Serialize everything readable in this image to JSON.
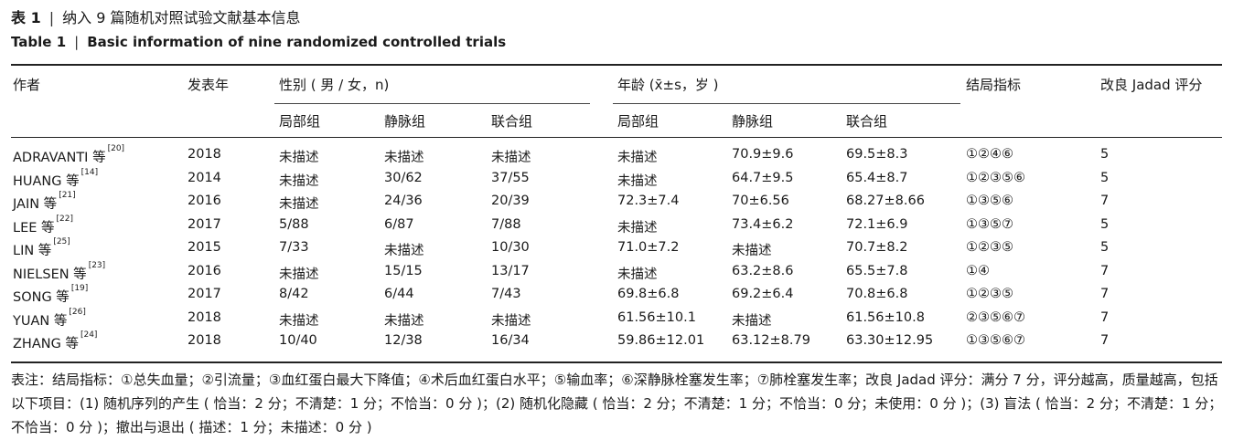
{
  "caption_cn": {
    "label": "表 1",
    "sep": "|",
    "text": "纳入 9 篇随机对照试验文献基本信息"
  },
  "caption_en": {
    "label": "Table 1",
    "sep": "|",
    "text": "Basic information of nine randomized controlled trials"
  },
  "headers": {
    "author": "作者",
    "year": "发表年",
    "sex": "性别 ( 男 / 女，n)",
    "age": "年龄 (x̄±s，岁 )",
    "outcome": "结局指标",
    "jadad": "改良 Jadad 评分",
    "sub": [
      "局部组",
      "静脉组",
      "联合组",
      "局部组",
      "静脉组",
      "联合组"
    ]
  },
  "rows": [
    {
      "author": "ADRAVANTI 等",
      "ref": "[20]",
      "year": "2018",
      "s1": "未描述",
      "s2": "未描述",
      "s3": "未描述",
      "a1": "未描述",
      "a2": "70.9±9.6",
      "a3": "69.5±8.3",
      "outcome": "①②④⑥",
      "jadad": "5"
    },
    {
      "author": "HUANG 等",
      "ref": "[14]",
      "year": "2014",
      "s1": "未描述",
      "s2": "30/62",
      "s3": "37/55",
      "a1": "未描述",
      "a2": "64.7±9.5",
      "a3": "65.4±8.7",
      "outcome": "①②③⑤⑥",
      "jadad": "5"
    },
    {
      "author": "JAIN 等",
      "ref": "[21]",
      "year": "2016",
      "s1": "未描述",
      "s2": "24/36",
      "s3": "20/39",
      "a1": "72.3±7.4",
      "a2": "70±6.56",
      "a3": "68.27±8.66",
      "outcome": "①③⑤⑥",
      "jadad": "7"
    },
    {
      "author": "LEE 等",
      "ref": "[22]",
      "year": "2017",
      "s1": "5/88",
      "s2": "6/87",
      "s3": "7/88",
      "a1": "未描述",
      "a2": "73.4±6.2",
      "a3": "72.1±6.9",
      "outcome": "①③⑤⑦",
      "jadad": "5"
    },
    {
      "author": "LIN 等",
      "ref": "[25]",
      "year": "2015",
      "s1": "7/33",
      "s2": "未描述",
      "s3": "10/30",
      "a1": "71.0±7.2",
      "a2": "未描述",
      "a3": "70.7±8.2",
      "outcome": "①②③⑤",
      "jadad": "5"
    },
    {
      "author": "NIELSEN 等",
      "ref": "[23]",
      "year": "2016",
      "s1": "未描述",
      "s2": "15/15",
      "s3": "13/17",
      "a1": "未描述",
      "a2": "63.2±8.6",
      "a3": "65.5±7.8",
      "outcome": "①④",
      "jadad": "7"
    },
    {
      "author": "SONG 等",
      "ref": "[19]",
      "year": "2017",
      "s1": "8/42",
      "s2": "6/44",
      "s3": "7/43",
      "a1": "69.8±6.8",
      "a2": "69.2±6.4",
      "a3": "70.8±6.8",
      "outcome": "①②③⑤",
      "jadad": "7"
    },
    {
      "author": "YUAN 等",
      "ref": "[26]",
      "year": "2018",
      "s1": "未描述",
      "s2": "未描述",
      "s3": "未描述",
      "a1": "61.56±10.1",
      "a2": "未描述",
      "a3": "61.56±10.8",
      "outcome": "②③⑤⑥⑦",
      "jadad": "7"
    },
    {
      "author": "ZHANG 等",
      "ref": "[24]",
      "year": "2018",
      "s1": "10/40",
      "s2": "12/38",
      "s3": "16/34",
      "a1": "59.86±12.01",
      "a2": "63.12±8.79",
      "a3": "63.30±12.95",
      "outcome": "①③⑤⑥⑦",
      "jadad": "7"
    }
  ],
  "note": "表注：结局指标：①总失血量；②引流量；③血红蛋白最大下降值；④术后血红蛋白水平；⑤输血率；⑥深静脉栓塞发生率；⑦肺栓塞发生率；改良 Jadad 评分：满分 7 分，评分越高，质量越高，包括以下项目：(1) 随机序列的产生 ( 恰当：2 分；不清楚：1 分；不恰当：0 分 )；(2) 随机化隐藏 ( 恰当：2 分；不清楚：1 分；不恰当：0 分；未使用：0 分 )；(3) 盲法 ( 恰当：2 分；不清楚：1 分；不恰当：0 分 )；撤出与退出 ( 描述：1 分；未描述：0 分 )"
}
